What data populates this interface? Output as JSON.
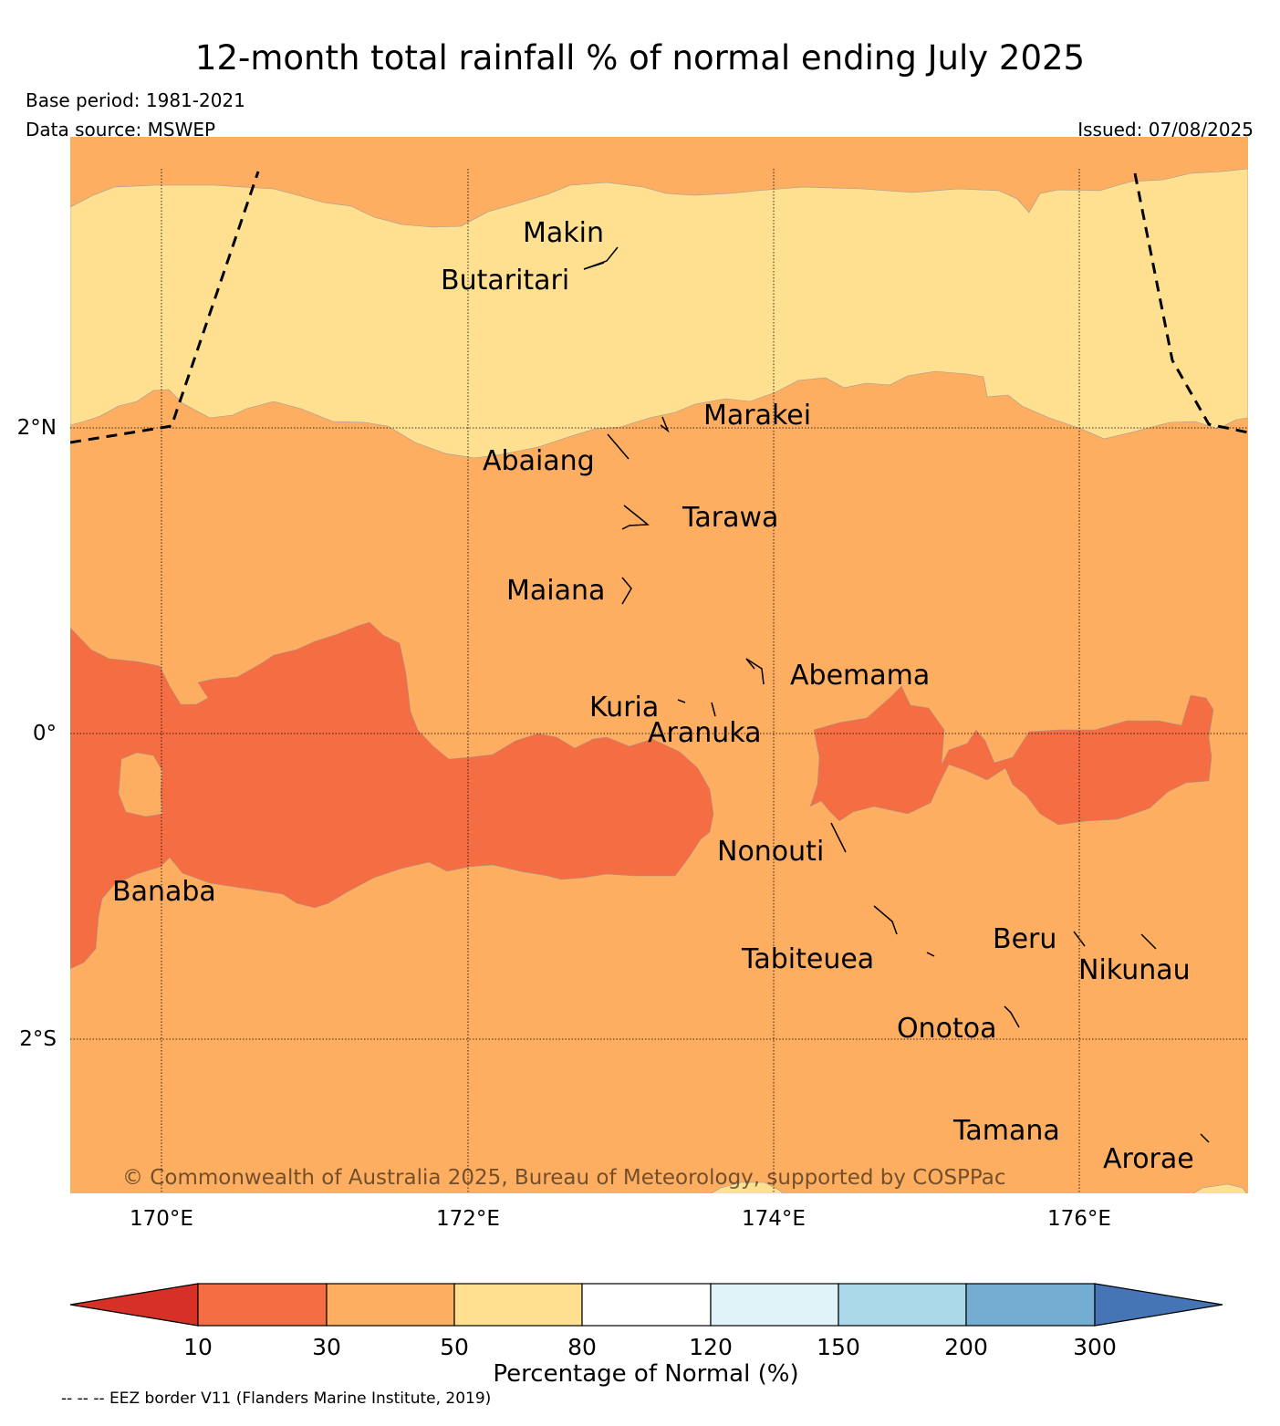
{
  "header": {
    "title": "12-month total rainfall % of normal ending July 2025",
    "base_period": "Base period: 1981-2021",
    "data_source": "Data source: MSWEP",
    "issued": "Issued: 07/08/2025"
  },
  "map": {
    "lat_labels": [
      "2°N",
      "0°",
      "2°S"
    ],
    "lon_labels": [
      "170°E",
      "172°E",
      "174°E",
      "176°E"
    ],
    "copyright": "© Commonwealth of Australia 2025, Bureau of Meteorology, supported by COSPPac",
    "islands": [
      "Makin",
      "Butaritari",
      "Marakei",
      "Abaiang",
      "Tarawa",
      "Maiana",
      "Abemama",
      "Kuria",
      "Aranuka",
      "Nonouti",
      "Banaba",
      "Tabiteuea",
      "Beru",
      "Nikunau",
      "Onotoa",
      "Tamana",
      "Arorae"
    ]
  },
  "legend": {
    "title": "Percentage of Normal (%)",
    "ticks": [
      "10",
      "30",
      "50",
      "80",
      "120",
      "150",
      "200",
      "300"
    ],
    "colors": [
      "#d73027",
      "#f46d43",
      "#fdae61",
      "#fee090",
      "#ffffff",
      "#e0f3f8",
      "#abd9e9",
      "#74add1",
      "#4575b4"
    ]
  },
  "footnote": "-- -- -- EEZ border V11 (Flanders Marine Institute, 2019)"
}
